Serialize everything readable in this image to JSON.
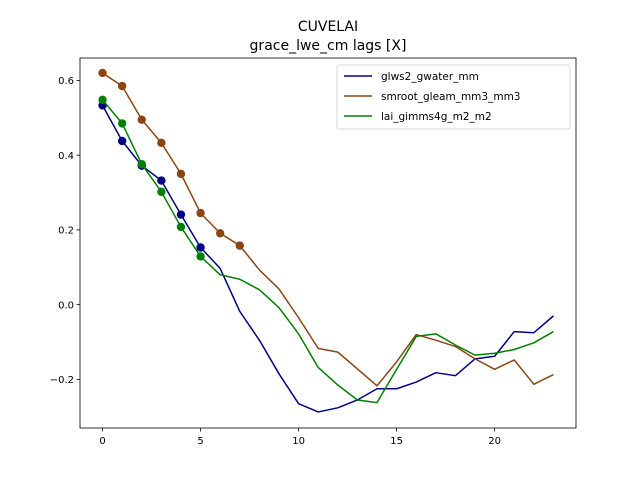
{
  "chart_data": {
    "type": "line",
    "title": "CUVELAI",
    "subtitle": "grace_lwe_cm lags [X]",
    "xlabel": "",
    "ylabel": "",
    "xlim": [
      -1.15,
      24.15
    ],
    "ylim": [
      -0.33,
      0.66
    ],
    "xticks": [
      0,
      5,
      10,
      15,
      20
    ],
    "xtick_labels": [
      "0",
      "5",
      "10",
      "15",
      "20"
    ],
    "yticks": [
      -0.2,
      0.0,
      0.2,
      0.4,
      0.6
    ],
    "ytick_labels": [
      "−0.2",
      "0.0",
      "0.2",
      "0.4",
      "0.6"
    ],
    "grid": false,
    "legend_position": "top-right",
    "x": [
      0,
      1,
      2,
      3,
      4,
      5,
      6,
      7,
      8,
      9,
      10,
      11,
      12,
      13,
      14,
      15,
      16,
      17,
      18,
      19,
      20,
      21,
      22,
      23
    ],
    "series": [
      {
        "name": "glws2_gwater_mm",
        "color": "#000080",
        "marker_count": 6,
        "values": [
          0.533,
          0.438,
          0.372,
          0.332,
          0.241,
          0.153,
          0.097,
          -0.018,
          -0.095,
          -0.185,
          -0.265,
          -0.287,
          -0.276,
          -0.255,
          -0.225,
          -0.225,
          -0.207,
          -0.182,
          -0.19,
          -0.145,
          -0.138,
          -0.072,
          -0.075,
          -0.03
        ]
      },
      {
        "name": "smroot_gleam_mm3_mm3",
        "color": "#8B4513",
        "marker_count": 8,
        "values": [
          0.62,
          0.585,
          0.495,
          0.433,
          0.35,
          0.245,
          0.191,
          0.158,
          0.093,
          0.042,
          -0.035,
          -0.117,
          -0.127,
          -0.172,
          -0.217,
          -0.153,
          -0.08,
          -0.095,
          -0.112,
          -0.145,
          -0.173,
          -0.148,
          -0.213,
          -0.187
        ]
      },
      {
        "name": "lai_gimms4g_m2_m2",
        "color": "#008000",
        "marker_count": 6,
        "values": [
          0.548,
          0.485,
          0.376,
          0.302,
          0.208,
          0.129,
          0.08,
          0.068,
          0.04,
          -0.008,
          -0.078,
          -0.168,
          -0.215,
          -0.255,
          -0.262,
          -0.173,
          -0.085,
          -0.078,
          -0.108,
          -0.135,
          -0.13,
          -0.12,
          -0.102,
          -0.072
        ]
      }
    ]
  }
}
